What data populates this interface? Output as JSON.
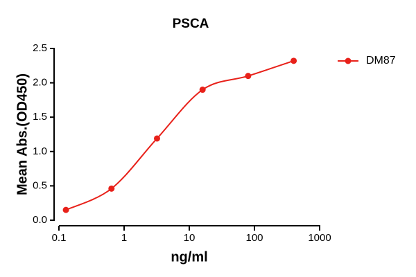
{
  "chart_data": {
    "type": "scatter",
    "title": "PSCA",
    "x_label": "ng/ml",
    "y_label": "Mean Abs.(OD450)",
    "x_scale": "log",
    "series": [
      {
        "name": "DM87",
        "color": "#e8211a",
        "x": [
          0.128,
          0.64,
          3.2,
          16,
          80,
          400
        ],
        "values": [
          0.15,
          0.46,
          1.19,
          1.9,
          2.1,
          2.32
        ]
      }
    ],
    "xlim": [
      0.1,
      1000
    ],
    "xticks": [
      0.1,
      1,
      10,
      100,
      1000
    ],
    "ylim": [
      0,
      2.5
    ],
    "yticks": [
      {
        "value": 0,
        "label": "0.0"
      },
      {
        "value": 0.5,
        "label": "0.5"
      },
      {
        "value": 1,
        "label": "1.0"
      },
      {
        "value": 1.5,
        "label": "1.5"
      },
      {
        "value": 2,
        "label": "2.0"
      },
      {
        "value": 2.5,
        "label": "2.5"
      }
    ],
    "legend": "right"
  }
}
